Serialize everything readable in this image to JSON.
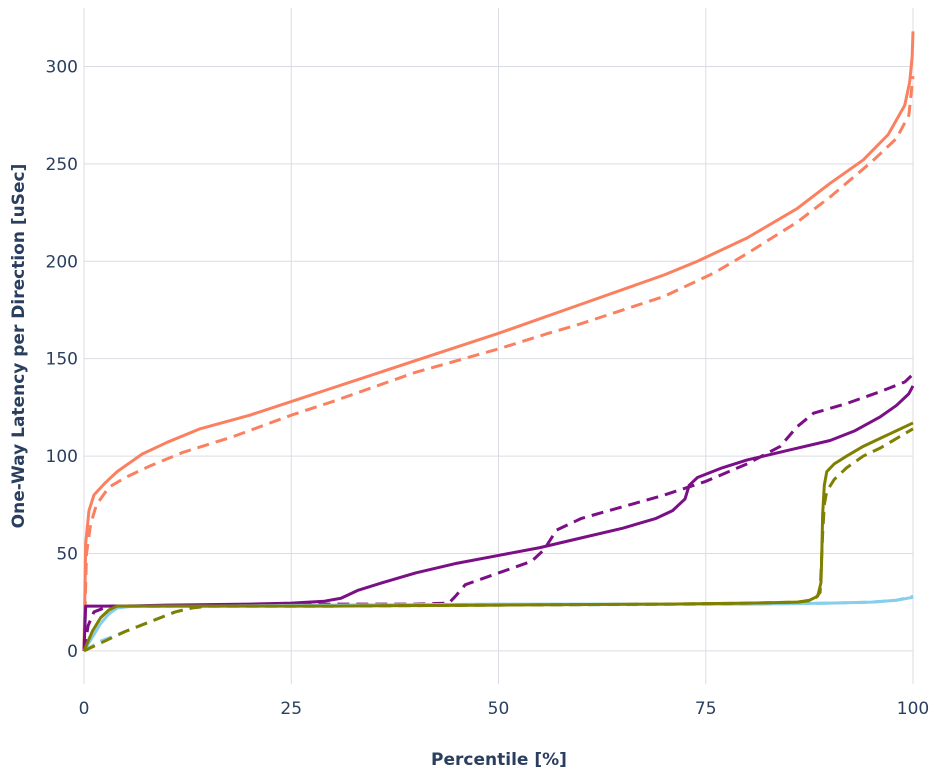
{
  "chart_data": {
    "type": "line",
    "title": "",
    "xlabel": "Percentile [%]",
    "ylabel": "One-Way Latency per Direction [uSec]",
    "xlim": [
      0,
      100
    ],
    "ylim": [
      -17,
      330
    ],
    "xticks": [
      0,
      25,
      50,
      75,
      100
    ],
    "yticks": [
      0,
      50,
      100,
      150,
      200,
      250,
      300
    ],
    "grid": true,
    "legend": "none",
    "series": [
      {
        "color": "#fa8060",
        "dash": "solid",
        "points": [
          [
            0,
            0
          ],
          [
            0.2,
            55
          ],
          [
            0.6,
            72
          ],
          [
            1.2,
            80
          ],
          [
            2.5,
            86
          ],
          [
            4,
            92
          ],
          [
            6,
            98
          ],
          [
            7,
            101
          ],
          [
            10,
            107
          ],
          [
            14,
            114
          ],
          [
            20,
            121
          ],
          [
            25,
            128
          ],
          [
            30,
            135
          ],
          [
            40,
            149
          ],
          [
            50,
            163
          ],
          [
            60,
            178
          ],
          [
            70,
            193
          ],
          [
            74,
            200
          ],
          [
            80,
            212
          ],
          [
            86,
            227
          ],
          [
            90,
            240
          ],
          [
            94,
            252
          ],
          [
            97,
            265
          ],
          [
            99,
            280
          ],
          [
            99.6,
            292
          ],
          [
            99.9,
            305
          ],
          [
            100,
            318
          ]
        ]
      },
      {
        "color": "#fa8060",
        "dash": "dash",
        "points": [
          [
            0,
            0
          ],
          [
            0.3,
            50
          ],
          [
            0.8,
            65
          ],
          [
            1.5,
            75
          ],
          [
            3,
            84
          ],
          [
            5,
            89
          ],
          [
            8,
            95
          ],
          [
            12,
            102
          ],
          [
            18,
            110
          ],
          [
            25,
            121
          ],
          [
            30,
            128
          ],
          [
            40,
            143
          ],
          [
            50,
            155
          ],
          [
            56,
            163
          ],
          [
            60,
            168
          ],
          [
            70,
            182
          ],
          [
            76,
            194
          ],
          [
            80,
            204
          ],
          [
            86,
            220
          ],
          [
            90,
            233
          ],
          [
            95,
            251
          ],
          [
            98,
            263
          ],
          [
            99.5,
            275
          ],
          [
            100,
            295
          ]
        ]
      },
      {
        "color": "#7b0f86",
        "dash": "solid",
        "points": [
          [
            0,
            0
          ],
          [
            0.2,
            23
          ],
          [
            5,
            23
          ],
          [
            10,
            23.5
          ],
          [
            20,
            24
          ],
          [
            25,
            24.5
          ],
          [
            29,
            25.5
          ],
          [
            31,
            27
          ],
          [
            33,
            31
          ],
          [
            36,
            35
          ],
          [
            40,
            40
          ],
          [
            45,
            45
          ],
          [
            50,
            49
          ],
          [
            55,
            53
          ],
          [
            60,
            58
          ],
          [
            65,
            63
          ],
          [
            69,
            68
          ],
          [
            71,
            72
          ],
          [
            72.5,
            78
          ],
          [
            73,
            85
          ],
          [
            74,
            89
          ],
          [
            77,
            94
          ],
          [
            80,
            98
          ],
          [
            85,
            103
          ],
          [
            90,
            108
          ],
          [
            93,
            113
          ],
          [
            96,
            120
          ],
          [
            98,
            126
          ],
          [
            99.5,
            132
          ],
          [
            100,
            136
          ]
        ]
      },
      {
        "color": "#7b0f86",
        "dash": "dash",
        "points": [
          [
            0,
            0
          ],
          [
            0.5,
            13
          ],
          [
            1.2,
            20
          ],
          [
            3,
            23
          ],
          [
            10,
            23
          ],
          [
            20,
            23.5
          ],
          [
            30,
            24
          ],
          [
            40,
            24
          ],
          [
            44,
            24.5
          ],
          [
            44.8,
            28
          ],
          [
            46,
            34
          ],
          [
            50,
            40
          ],
          [
            54,
            46
          ],
          [
            55.5,
            52
          ],
          [
            57,
            62
          ],
          [
            60,
            68
          ],
          [
            65,
            74
          ],
          [
            70,
            80
          ],
          [
            75,
            87
          ],
          [
            80,
            96
          ],
          [
            84,
            105
          ],
          [
            86,
            115
          ],
          [
            88,
            122
          ],
          [
            92,
            127
          ],
          [
            96,
            133
          ],
          [
            99,
            138
          ],
          [
            100,
            142
          ]
        ]
      },
      {
        "color": "#87ceeb",
        "dash": "solid",
        "points": [
          [
            0,
            0
          ],
          [
            1,
            7
          ],
          [
            2,
            14
          ],
          [
            3,
            19
          ],
          [
            4,
            22
          ],
          [
            6,
            23
          ],
          [
            15,
            23
          ],
          [
            30,
            23.5
          ],
          [
            50,
            24
          ],
          [
            70,
            24
          ],
          [
            80,
            24
          ],
          [
            90,
            24.5
          ],
          [
            95,
            25
          ],
          [
            98,
            26
          ],
          [
            100,
            27.5
          ]
        ]
      },
      {
        "color": "#87ceeb",
        "dash": "dash",
        "points": [
          [
            0,
            0
          ],
          [
            2,
            5
          ],
          [
            5,
            10
          ],
          [
            8,
            15
          ],
          [
            11,
            20
          ],
          [
            13,
            22
          ],
          [
            15,
            23
          ],
          [
            30,
            23
          ],
          [
            50,
            23.5
          ],
          [
            80,
            24
          ],
          [
            90,
            24.5
          ],
          [
            95,
            25
          ],
          [
            98,
            26
          ],
          [
            100,
            28
          ]
        ]
      },
      {
        "color": "#808000",
        "dash": "solid",
        "points": [
          [
            0,
            0
          ],
          [
            1,
            10
          ],
          [
            2,
            17
          ],
          [
            3,
            21
          ],
          [
            4,
            23
          ],
          [
            10,
            23
          ],
          [
            30,
            23
          ],
          [
            50,
            23.5
          ],
          [
            70,
            24
          ],
          [
            80,
            24.5
          ],
          [
            86,
            25
          ],
          [
            87.5,
            26
          ],
          [
            88.5,
            28
          ],
          [
            88.9,
            35
          ],
          [
            89,
            50
          ],
          [
            89.1,
            70
          ],
          [
            89.3,
            85
          ],
          [
            89.6,
            92
          ],
          [
            90.5,
            96
          ],
          [
            92,
            100
          ],
          [
            94,
            105
          ],
          [
            96,
            109
          ],
          [
            98,
            113
          ],
          [
            100,
            117
          ]
        ]
      },
      {
        "color": "#808000",
        "dash": "dash",
        "points": [
          [
            0,
            0
          ],
          [
            2,
            4
          ],
          [
            5,
            10
          ],
          [
            8,
            15
          ],
          [
            11,
            20
          ],
          [
            13,
            22
          ],
          [
            15,
            23
          ],
          [
            30,
            23
          ],
          [
            50,
            23.5
          ],
          [
            70,
            24
          ],
          [
            80,
            24.5
          ],
          [
            86,
            25
          ],
          [
            88,
            26
          ],
          [
            88.8,
            30
          ],
          [
            89.1,
            60
          ],
          [
            89.3,
            75
          ],
          [
            89.6,
            82
          ],
          [
            90.5,
            88
          ],
          [
            92,
            94
          ],
          [
            94,
            100
          ],
          [
            96,
            104
          ],
          [
            98,
            109
          ],
          [
            100,
            114
          ]
        ]
      }
    ]
  }
}
